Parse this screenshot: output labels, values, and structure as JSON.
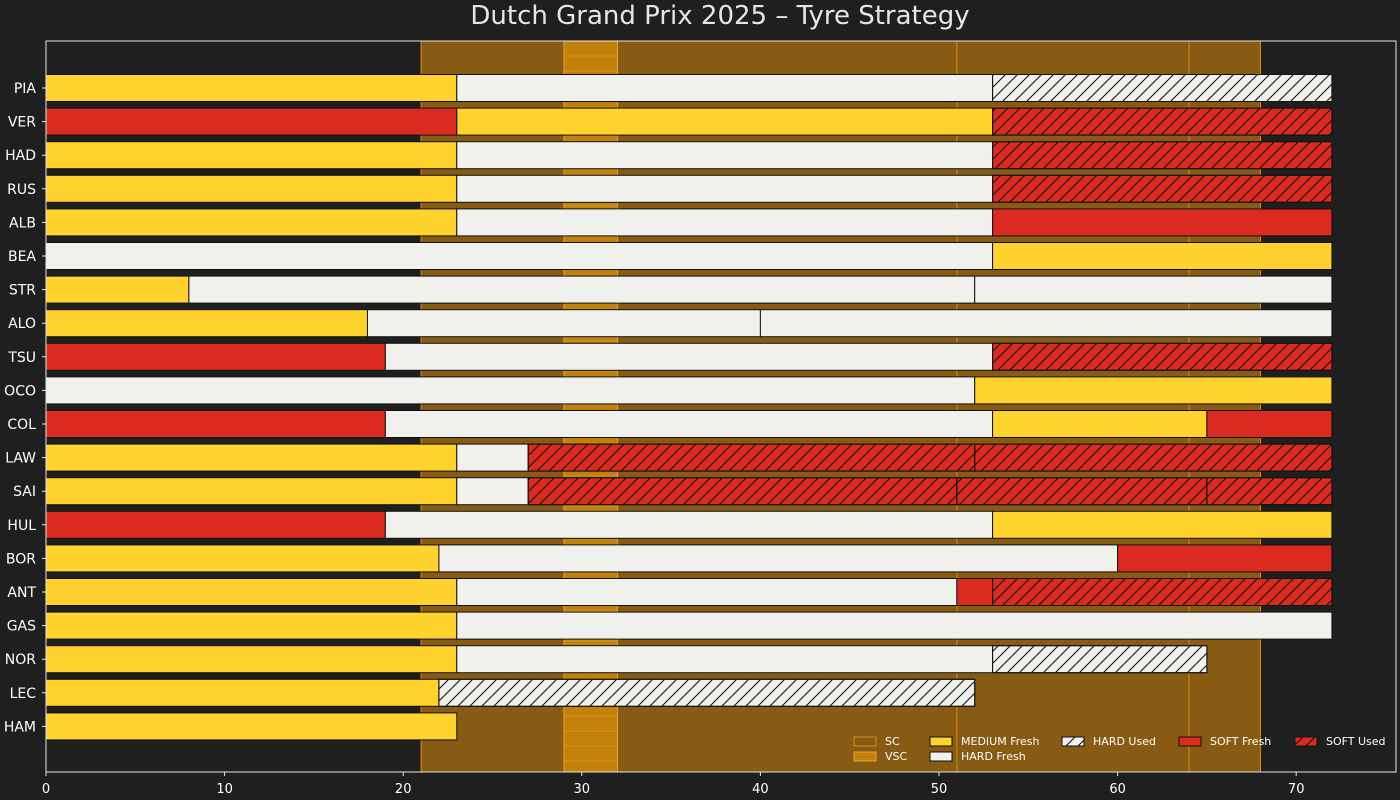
{
  "chart_data": {
    "type": "bar",
    "orientation": "horizontal-stacked",
    "title": "Dutch Grand Prix 2025  –  Tyre Strategy",
    "xlabel": "",
    "ylabel": "",
    "xlim": [
      0,
      76
    ],
    "xticks": [
      0,
      10,
      20,
      30,
      40,
      50,
      60,
      70
    ],
    "grid": false,
    "legend_position": "bottom-right",
    "colors": {
      "background": "#1f1f1f",
      "axes_edge": "#e6e6e6",
      "SOFT": "#db2a1f",
      "MEDIUM": "#ffd22e",
      "HARD": "#f0f0ec",
      "bar_edge": "#111111",
      "sc_fill": "#875b13",
      "sc_line": "#d98c12",
      "vsc_fill": "#c2810b",
      "vsc_line": "#e9a23b"
    },
    "neutralised_periods": [
      {
        "type": "SC",
        "start": 21,
        "end": 68
      },
      {
        "type": "VSC",
        "start": 29,
        "end": 32
      }
    ],
    "internal_markers": [
      51,
      64
    ],
    "legend": [
      {
        "label": "SC",
        "kind": "SC"
      },
      {
        "label": "VSC",
        "kind": "VSC"
      },
      {
        "label": "MEDIUM Fresh",
        "compound": "MEDIUM",
        "used": false
      },
      {
        "label": "HARD Fresh",
        "compound": "HARD",
        "used": false
      },
      {
        "label": "HARD Used",
        "compound": "HARD",
        "used": true
      },
      {
        "label": "SOFT Fresh",
        "compound": "SOFT",
        "used": false
      },
      {
        "label": "SOFT Used",
        "compound": "SOFT",
        "used": true
      }
    ],
    "drivers": [
      {
        "code": "PIA",
        "stints": [
          {
            "compound": "MEDIUM",
            "used": false,
            "start": 0,
            "end": 23
          },
          {
            "compound": "HARD",
            "used": false,
            "start": 23,
            "end": 53
          },
          {
            "compound": "HARD",
            "used": true,
            "start": 53,
            "end": 72
          }
        ]
      },
      {
        "code": "VER",
        "stints": [
          {
            "compound": "SOFT",
            "used": false,
            "start": 0,
            "end": 23
          },
          {
            "compound": "MEDIUM",
            "used": false,
            "start": 23,
            "end": 53
          },
          {
            "compound": "SOFT",
            "used": true,
            "start": 53,
            "end": 72
          }
        ]
      },
      {
        "code": "HAD",
        "stints": [
          {
            "compound": "MEDIUM",
            "used": false,
            "start": 0,
            "end": 23
          },
          {
            "compound": "HARD",
            "used": false,
            "start": 23,
            "end": 53
          },
          {
            "compound": "SOFT",
            "used": true,
            "start": 53,
            "end": 72
          }
        ]
      },
      {
        "code": "RUS",
        "stints": [
          {
            "compound": "MEDIUM",
            "used": false,
            "start": 0,
            "end": 23
          },
          {
            "compound": "HARD",
            "used": false,
            "start": 23,
            "end": 53
          },
          {
            "compound": "SOFT",
            "used": true,
            "start": 53,
            "end": 72
          }
        ]
      },
      {
        "code": "ALB",
        "stints": [
          {
            "compound": "MEDIUM",
            "used": false,
            "start": 0,
            "end": 23
          },
          {
            "compound": "HARD",
            "used": false,
            "start": 23,
            "end": 53
          },
          {
            "compound": "SOFT",
            "used": false,
            "start": 53,
            "end": 72
          }
        ]
      },
      {
        "code": "BEA",
        "stints": [
          {
            "compound": "HARD",
            "used": false,
            "start": 0,
            "end": 53
          },
          {
            "compound": "MEDIUM",
            "used": false,
            "start": 53,
            "end": 72
          }
        ]
      },
      {
        "code": "STR",
        "stints": [
          {
            "compound": "MEDIUM",
            "used": false,
            "start": 0,
            "end": 8
          },
          {
            "compound": "HARD",
            "used": false,
            "start": 8,
            "end": 52
          },
          {
            "compound": "HARD",
            "used": false,
            "start": 52,
            "end": 72
          }
        ]
      },
      {
        "code": "ALO",
        "stints": [
          {
            "compound": "MEDIUM",
            "used": false,
            "start": 0,
            "end": 18
          },
          {
            "compound": "HARD",
            "used": false,
            "start": 18,
            "end": 40
          },
          {
            "compound": "HARD",
            "used": false,
            "start": 40,
            "end": 72
          }
        ]
      },
      {
        "code": "TSU",
        "stints": [
          {
            "compound": "SOFT",
            "used": false,
            "start": 0,
            "end": 19
          },
          {
            "compound": "HARD",
            "used": false,
            "start": 19,
            "end": 53
          },
          {
            "compound": "SOFT",
            "used": true,
            "start": 53,
            "end": 72
          }
        ]
      },
      {
        "code": "OCO",
        "stints": [
          {
            "compound": "HARD",
            "used": false,
            "start": 0,
            "end": 52
          },
          {
            "compound": "MEDIUM",
            "used": false,
            "start": 52,
            "end": 72
          }
        ]
      },
      {
        "code": "COL",
        "stints": [
          {
            "compound": "SOFT",
            "used": false,
            "start": 0,
            "end": 19
          },
          {
            "compound": "HARD",
            "used": false,
            "start": 19,
            "end": 53
          },
          {
            "compound": "MEDIUM",
            "used": false,
            "start": 53,
            "end": 65
          },
          {
            "compound": "SOFT",
            "used": false,
            "start": 65,
            "end": 72
          }
        ]
      },
      {
        "code": "LAW",
        "stints": [
          {
            "compound": "MEDIUM",
            "used": false,
            "start": 0,
            "end": 23
          },
          {
            "compound": "HARD",
            "used": false,
            "start": 23,
            "end": 27
          },
          {
            "compound": "SOFT",
            "used": true,
            "start": 27,
            "end": 52
          },
          {
            "compound": "SOFT",
            "used": true,
            "start": 52,
            "end": 72
          }
        ]
      },
      {
        "code": "SAI",
        "stints": [
          {
            "compound": "MEDIUM",
            "used": false,
            "start": 0,
            "end": 23
          },
          {
            "compound": "HARD",
            "used": false,
            "start": 23,
            "end": 27
          },
          {
            "compound": "SOFT",
            "used": true,
            "start": 27,
            "end": 51
          },
          {
            "compound": "SOFT",
            "used": true,
            "start": 51,
            "end": 65
          },
          {
            "compound": "SOFT",
            "used": true,
            "start": 65,
            "end": 72
          }
        ]
      },
      {
        "code": "HUL",
        "stints": [
          {
            "compound": "SOFT",
            "used": false,
            "start": 0,
            "end": 19
          },
          {
            "compound": "HARD",
            "used": false,
            "start": 19,
            "end": 53
          },
          {
            "compound": "MEDIUM",
            "used": false,
            "start": 53,
            "end": 72
          }
        ]
      },
      {
        "code": "BOR",
        "stints": [
          {
            "compound": "MEDIUM",
            "used": false,
            "start": 0,
            "end": 22
          },
          {
            "compound": "HARD",
            "used": false,
            "start": 22,
            "end": 60
          },
          {
            "compound": "SOFT",
            "used": false,
            "start": 60,
            "end": 72
          }
        ]
      },
      {
        "code": "ANT",
        "stints": [
          {
            "compound": "MEDIUM",
            "used": false,
            "start": 0,
            "end": 23
          },
          {
            "compound": "HARD",
            "used": false,
            "start": 23,
            "end": 51
          },
          {
            "compound": "SOFT",
            "used": false,
            "start": 51,
            "end": 53
          },
          {
            "compound": "SOFT",
            "used": true,
            "start": 53,
            "end": 72
          }
        ]
      },
      {
        "code": "GAS",
        "stints": [
          {
            "compound": "MEDIUM",
            "used": false,
            "start": 0,
            "end": 23
          },
          {
            "compound": "HARD",
            "used": false,
            "start": 23,
            "end": 72
          }
        ]
      },
      {
        "code": "NOR",
        "stints": [
          {
            "compound": "MEDIUM",
            "used": false,
            "start": 0,
            "end": 23
          },
          {
            "compound": "HARD",
            "used": false,
            "start": 23,
            "end": 53
          },
          {
            "compound": "HARD",
            "used": true,
            "start": 53,
            "end": 65
          }
        ]
      },
      {
        "code": "LEC",
        "stints": [
          {
            "compound": "MEDIUM",
            "used": false,
            "start": 0,
            "end": 22
          },
          {
            "compound": "HARD",
            "used": true,
            "start": 22,
            "end": 52
          }
        ]
      },
      {
        "code": "HAM",
        "stints": [
          {
            "compound": "MEDIUM",
            "used": false,
            "start": 0,
            "end": 23
          }
        ]
      }
    ]
  }
}
